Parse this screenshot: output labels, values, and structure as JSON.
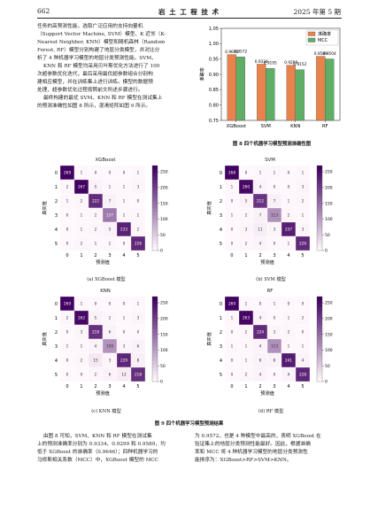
{
  "header": {
    "page_number": "662",
    "journal_title": "岩 土 工 程 技 术",
    "issue": "2025 年第 5 期"
  },
  "left_paragraph": [
    "任务的高预测性能，选取广泛应用的支持向量机",
    "（Support Vector Machine, SVM）模型、K 近邻（K-",
    "Nearest Neighbor, KNN）模型和随机森林（Random",
    "Forest, RF）模型分别构建了地层分类模型，并对比分",
    "析了 4 种机器学习模型的地层分类预测性能。SVM、",
    "KNN 和 RF 模型均采用贝叶斯优化方法进行了 100",
    "次超参数优化迭代，最后采用最优超参数组合分别构",
    "建相应模型，并在训练集上进行训练。模型的数据预",
    "处理、超参数优化过程按照前文所述步骤进行。",
    "最终构建的最优 SVM、KNN 和 RF 模型在测试集上",
    "的预测准确性如图 8 所示，混淆矩阵如图 9 所示。"
  ],
  "fig8": {
    "caption": "图 8    四个机器学习模型预测准确性图",
    "chart_data": {
      "type": "bar",
      "categories": [
        "XGBoost",
        "SVM",
        "KNN",
        "RF"
      ],
      "series": [
        {
          "name": "准确率",
          "values": [
            0.9646,
            0.9334,
            0.9299,
            0.9589
          ],
          "labels": [
            "0.9646",
            "0.9334",
            "0.9299",
            "0.9589"
          ]
        },
        {
          "name": "MCC",
          "values": [
            0.9572,
            0.9195,
            0.9152,
            0.9504
          ],
          "labels": [
            "0.9572",
            "0.9195",
            "0.9152",
            "0.9504"
          ]
        }
      ],
      "ylabel": "准确率",
      "ylim": [
        0.75,
        1.05
      ],
      "yticks": [
        "0.75",
        "0.80",
        "0.85",
        "0.90",
        "0.95",
        "1.00",
        "1.05"
      ],
      "legend_placement": "top-right",
      "colors": [
        "#e8834e",
        "#5fae66"
      ]
    }
  },
  "fig9": {
    "caption": "图 9    四个机器学习模型预测结果",
    "chart_data": [
      {
        "type": "heatmap",
        "title": "XGBoost",
        "subcaption": "(a) XGBoost 模型",
        "xlabel": "预测值",
        "ylabel": "真实值",
        "ticks": [
          "0",
          "1",
          "2",
          "3",
          "4",
          "5"
        ],
        "colorbar_ticks": [
          "0",
          "50",
          "100",
          "150",
          "200",
          "250"
        ],
        "vmax": 270,
        "matrix": [
          [
            269,
            1,
            0,
            0,
            0,
            1
          ],
          [
            2,
            267,
            5,
            1,
            1,
            3
          ],
          [
            1,
            2,
            222,
            7,
            1,
            0
          ],
          [
            0,
            1,
            2,
            137,
            1,
            1
          ],
          [
            0,
            1,
            2,
            5,
            233,
            2
          ],
          [
            0,
            2,
            1,
            1,
            0,
            226
          ]
        ]
      },
      {
        "type": "heatmap",
        "title": "SVM",
        "subcaption": "(b) SVM 模型",
        "xlabel": "预测值",
        "ylabel": "真实值",
        "ticks": [
          "0",
          "1",
          "2",
          "3",
          "4",
          "5"
        ],
        "colorbar_ticks": [
          "0",
          "50",
          "100",
          "150",
          "200",
          "250"
        ],
        "vmax": 270,
        "matrix": [
          [
            268,
            0,
            1,
            1,
            0,
            1
          ],
          [
            1,
            260,
            4,
            0,
            0,
            3
          ],
          [
            0,
            5,
            212,
            7,
            1,
            2
          ],
          [
            1,
            2,
            7,
            113,
            2,
            1
          ],
          [
            0,
            3,
            11,
            3,
            237,
            3
          ],
          [
            0,
            2,
            4,
            0,
            1,
            226
          ]
        ]
      },
      {
        "type": "heatmap",
        "title": "KNN",
        "subcaption": "(c) KNN 模型",
        "xlabel": "预测值",
        "ylabel": "真实值",
        "ticks": [
          "0",
          "1",
          "2",
          "3",
          "4",
          "5"
        ],
        "colorbar_ticks": [
          "0",
          "50",
          "100",
          "150",
          "200",
          "250"
        ],
        "vmax": 270,
        "matrix": [
          [
            269,
            1,
            0,
            0,
            0,
            1
          ],
          [
            2,
            262,
            5,
            2,
            1,
            3
          ],
          [
            0,
            3,
            218,
            6,
            0,
            0
          ],
          [
            1,
            1,
            4,
            109,
            3,
            6
          ],
          [
            0,
            2,
            15,
            3,
            229,
            8
          ],
          [
            0,
            0,
            2,
            6,
            12,
            218
          ]
        ]
      },
      {
        "type": "heatmap",
        "title": "RF",
        "subcaption": "(d) RF 模型",
        "xlabel": "预测值",
        "ylabel": "真实值",
        "ticks": [
          "0",
          "1",
          "2",
          "3",
          "4",
          "5"
        ],
        "colorbar_ticks": [
          "0",
          "50",
          "100",
          "150",
          "200",
          "250"
        ],
        "vmax": 270,
        "matrix": [
          [
            269,
            1,
            0,
            1,
            0,
            0
          ],
          [
            1,
            263,
            4,
            0,
            1,
            2
          ],
          [
            0,
            2,
            224,
            3,
            2,
            0
          ],
          [
            1,
            1,
            4,
            113,
            1,
            1
          ],
          [
            0,
            1,
            6,
            6,
            241,
            4
          ],
          [
            0,
            2,
            4,
            0,
            4,
            228
          ]
        ]
      }
    ]
  },
  "bottom_left": [
    "由图 8 可知，SVM、KNN 和 RF 模型在测试集",
    "上的预测准确率分别为 0.9334、0.9299 和 0.9589，均",
    "低于 XGBoost 的准确率（0.9646）；四种机器学习的",
    "马修斯相关系数（MCC）中，XGBoost 模型的 MCC"
  ],
  "bottom_right": [
    "为 0.9572，也是 4 种模型中最高的，表明 XGBoost 在",
    "验证集上的地层分类预测性能最好。因此，根据准确",
    "率和 MCC 将 4 种机器学习模型的地层分类预测性",
    "能排序为：XGBoost>RF>SVM>KNN。"
  ]
}
